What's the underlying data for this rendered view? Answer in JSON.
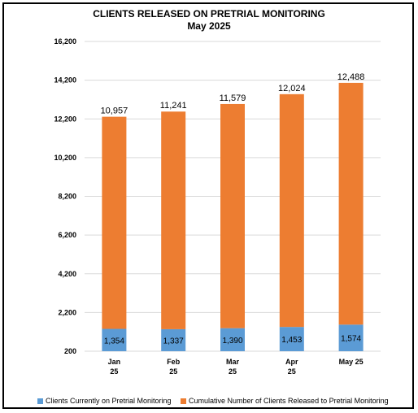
{
  "chart_data": {
    "type": "bar",
    "stacked": true,
    "title": "CLIENTS RELEASED ON PRETRIAL MONITORING",
    "subtitle": "May 2025",
    "categories": [
      [
        "Jan",
        "25"
      ],
      [
        "Feb",
        "25"
      ],
      [
        "Mar",
        "25"
      ],
      [
        "Apr",
        "25"
      ],
      [
        "May 25"
      ]
    ],
    "series": [
      {
        "name": "Clients Currently on Pretrial Monitoring",
        "color": "#5b9bd5",
        "values": [
          1354,
          1337,
          1390,
          1453,
          1574
        ],
        "labels": [
          "1,354",
          "1,337",
          "1,390",
          "1,453",
          "1,574"
        ]
      },
      {
        "name": "Cumulative Number of Clients Released to Pretrial Monitoring",
        "color": "#ed7d31",
        "values": [
          10957,
          11241,
          11579,
          12024,
          12488
        ],
        "labels": [
          "10,957",
          "11,241",
          "11,579",
          "12,024",
          "12,488"
        ]
      }
    ],
    "y_ticks": [
      "16,200",
      "14,200",
      "12,200",
      "10,200",
      "8,200",
      "6,200",
      "4,200",
      "2,200",
      "200"
    ],
    "ylim": [
      200,
      16200
    ],
    "grid": true,
    "legend_position": "bottom"
  }
}
